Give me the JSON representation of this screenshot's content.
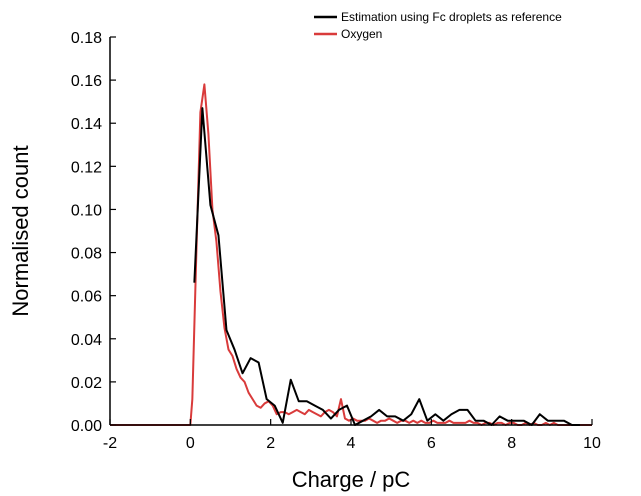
{
  "chart_data": {
    "type": "line",
    "title": "",
    "xlabel": "Charge / pC",
    "ylabel": "Normalised count",
    "xlim": [
      -2,
      10
    ],
    "ylim": [
      0,
      0.18
    ],
    "xticks": [
      -2,
      0,
      2,
      4,
      6,
      8,
      10
    ],
    "yticks": [
      0.0,
      0.02,
      0.04,
      0.06,
      0.08,
      0.1,
      0.12,
      0.14,
      0.16,
      0.18
    ],
    "ytick_labels": [
      "0.00",
      "0.02",
      "0.04",
      "0.06",
      "0.08",
      "0.10",
      "0.12",
      "0.14",
      "0.16",
      "0.18"
    ],
    "xtick_labels": [
      "-2",
      "0",
      "2",
      "4",
      "6",
      "8",
      "10"
    ],
    "grid": false,
    "legend_position": "top-right",
    "series": [
      {
        "name": "Estimation using Fc droplets as reference",
        "color": "#000000",
        "x": [
          0.1,
          0.3,
          0.5,
          0.7,
          0.9,
          1.1,
          1.3,
          1.5,
          1.7,
          1.9,
          2.1,
          2.3,
          2.5,
          2.7,
          2.9,
          3.1,
          3.3,
          3.5,
          3.7,
          3.9,
          4.1,
          4.3,
          4.5,
          4.7,
          4.9,
          5.1,
          5.3,
          5.5,
          5.7,
          5.9,
          6.1,
          6.3,
          6.5,
          6.7,
          6.9,
          7.1,
          7.3,
          7.5,
          7.7,
          7.9,
          8.1,
          8.3,
          8.5,
          8.7,
          8.9,
          9.1,
          9.3,
          9.5,
          9.7
        ],
        "y": [
          0.066,
          0.147,
          0.102,
          0.088,
          0.044,
          0.035,
          0.024,
          0.031,
          0.029,
          0.012,
          0.009,
          0.001,
          0.021,
          0.011,
          0.011,
          0.009,
          0.007,
          0.003,
          0.007,
          0.009,
          0.0,
          0.002,
          0.004,
          0.007,
          0.004,
          0.004,
          0.002,
          0.005,
          0.012,
          0.002,
          0.005,
          0.002,
          0.005,
          0.007,
          0.007,
          0.002,
          0.002,
          0.0,
          0.004,
          0.002,
          0.002,
          0.002,
          0.0,
          0.005,
          0.002,
          0.002,
          0.002,
          0.0,
          0.0
        ]
      },
      {
        "name": "Oxygen",
        "color": "#d93b3b",
        "x": [
          -2.0,
          -1.0,
          0.0,
          0.05,
          0.15,
          0.25,
          0.35,
          0.45,
          0.55,
          0.65,
          0.75,
          0.85,
          0.95,
          1.05,
          1.15,
          1.25,
          1.35,
          1.45,
          1.55,
          1.65,
          1.75,
          1.85,
          1.95,
          2.05,
          2.15,
          2.25,
          2.35,
          2.45,
          2.55,
          2.65,
          2.75,
          2.85,
          2.95,
          3.05,
          3.15,
          3.25,
          3.35,
          3.45,
          3.55,
          3.65,
          3.75,
          3.85,
          3.95,
          4.05,
          4.15,
          4.25,
          4.35,
          4.45,
          4.55,
          4.65,
          4.75,
          4.85,
          4.95,
          5.05,
          5.15,
          5.25,
          5.35,
          5.45,
          5.55,
          5.65,
          5.75,
          5.85,
          5.95,
          6.05,
          6.15,
          6.25,
          6.35,
          6.45,
          6.55,
          6.65,
          6.75,
          6.85,
          6.95,
          7.05,
          7.15,
          7.25,
          7.35,
          7.45,
          7.55,
          7.65,
          7.75,
          7.85,
          7.95,
          8.05,
          8.15,
          8.25,
          8.35,
          8.45,
          8.55,
          8.65,
          8.75,
          8.85,
          8.95,
          9.05,
          9.15,
          9.25,
          9.35,
          9.45,
          9.55,
          9.65,
          9.75,
          10.0
        ],
        "y": [
          0.0,
          0.0,
          0.0,
          0.012,
          0.08,
          0.145,
          0.158,
          0.135,
          0.1,
          0.085,
          0.062,
          0.045,
          0.035,
          0.032,
          0.026,
          0.022,
          0.02,
          0.015,
          0.012,
          0.009,
          0.008,
          0.01,
          0.011,
          0.009,
          0.005,
          0.006,
          0.006,
          0.005,
          0.006,
          0.007,
          0.006,
          0.005,
          0.007,
          0.006,
          0.005,
          0.004,
          0.006,
          0.007,
          0.006,
          0.004,
          0.012,
          0.003,
          0.002,
          0.003,
          0.002,
          0.002,
          0.002,
          0.003,
          0.002,
          0.001,
          0.002,
          0.002,
          0.003,
          0.002,
          0.001,
          0.002,
          0.002,
          0.001,
          0.002,
          0.001,
          0.002,
          0.001,
          0.001,
          0.002,
          0.001,
          0.001,
          0.001,
          0.002,
          0.001,
          0.001,
          0.001,
          0.001,
          0.002,
          0.001,
          0.001,
          0.0,
          0.001,
          0.001,
          0.0,
          0.001,
          0.001,
          0.0,
          0.001,
          0.001,
          0.0,
          0.0,
          0.001,
          0.0,
          0.001,
          0.0,
          0.0,
          0.001,
          0.0,
          0.001,
          0.0,
          0.0,
          0.0,
          0.0,
          0.0,
          0.0,
          0.0,
          0.0
        ]
      }
    ]
  }
}
